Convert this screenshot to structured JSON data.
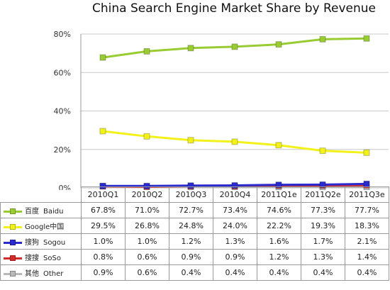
{
  "title": "China Search Engine Market Share by Revenue",
  "chart_data": {
    "type": "line",
    "title": "China Search Engine Market Share by Revenue",
    "categories": [
      "2010Q1",
      "2010Q2",
      "2010Q3",
      "2010Q4",
      "2011Q1e",
      "2011Q2e",
      "2011Q3e"
    ],
    "ylim": [
      0,
      80
    ],
    "yticks": [
      "0%",
      "20%",
      "40%",
      "60%",
      "80%"
    ],
    "grid": true,
    "legend_placement": "table-left",
    "series": [
      {
        "name_cn": "百度",
        "name": "Baidu",
        "color": "#99cc33",
        "values": [
          67.8,
          71.0,
          72.7,
          73.4,
          74.6,
          77.3,
          77.7
        ],
        "labels": [
          "67.8%",
          "71.0%",
          "72.7%",
          "73.4%",
          "74.6%",
          "77.3%",
          "77.7%"
        ]
      },
      {
        "name_cn": "中国",
        "name": "Google",
        "color": "#f2f21a",
        "values": [
          29.5,
          26.8,
          24.8,
          24.0,
          22.2,
          19.3,
          18.3
        ],
        "labels": [
          "29.5%",
          "26.8%",
          "24.8%",
          "24.0%",
          "22.2%",
          "19.3%",
          "18.3%"
        ]
      },
      {
        "name_cn": "搜狗",
        "name": "Sogou",
        "color": "#2a2ad1",
        "values": [
          1.0,
          1.0,
          1.2,
          1.3,
          1.6,
          1.7,
          2.1
        ],
        "labels": [
          "1.0%",
          "1.0%",
          "1.2%",
          "1.3%",
          "1.6%",
          "1.7%",
          "2.1%"
        ]
      },
      {
        "name_cn": "搜搜",
        "name": "SoSo",
        "color": "#d42a2a",
        "values": [
          0.8,
          0.6,
          0.9,
          0.9,
          1.2,
          1.3,
          1.4
        ],
        "labels": [
          "0.8%",
          "0.6%",
          "0.9%",
          "0.9%",
          "1.2%",
          "1.3%",
          "1.4%"
        ]
      },
      {
        "name_cn": "其他",
        "name": "Other",
        "color": "#b8b8b8",
        "values": [
          0.9,
          0.6,
          0.4,
          0.4,
          0.4,
          0.4,
          0.4
        ],
        "labels": [
          "0.9%",
          "0.6%",
          "0.4%",
          "0.4%",
          "0.4%",
          "0.4%",
          "0.4%"
        ]
      }
    ]
  }
}
